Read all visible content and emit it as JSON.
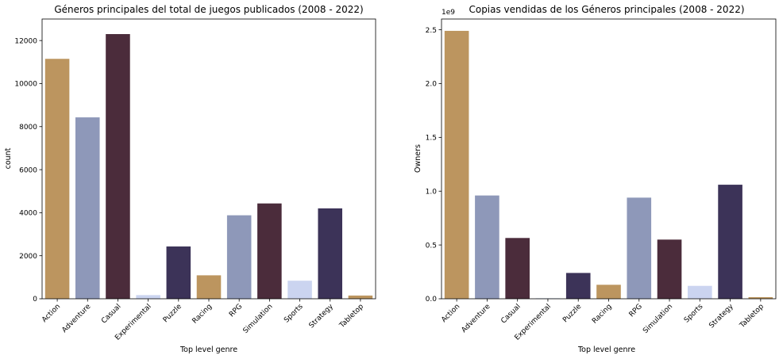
{
  "chart_data": [
    {
      "type": "bar",
      "title": "Géneros principales del total de juegos publicados (2008 - 2022)",
      "xlabel": "Top level genre",
      "ylabel": "count",
      "categories": [
        "Action",
        "Adventure",
        "Casual",
        "Experimental",
        "Puzzle",
        "Racing",
        "RPG",
        "Simulation",
        "Sports",
        "Strategy",
        "Tabletop"
      ],
      "values": [
        11150,
        8430,
        12300,
        170,
        2430,
        1090,
        3880,
        4430,
        840,
        4200,
        150
      ],
      "ylim": [
        0,
        13000
      ],
      "yticks": [
        0,
        2000,
        4000,
        6000,
        8000,
        10000,
        12000
      ],
      "ytick_labels": [
        "0",
        "2000",
        "4000",
        "6000",
        "8000",
        "10000",
        "12000"
      ],
      "colors": [
        "#bc955f",
        "#8e98b9",
        "#4b2c3b",
        "#cbd4f0",
        "#3c3358",
        "#bc955f",
        "#8e98b9",
        "#4b2c3b",
        "#cbd4f0",
        "#3c3358",
        "#bc955f"
      ],
      "grid": false
    },
    {
      "type": "bar",
      "title": "Copias vendidas de los Géneros principales (2008 - 2022)",
      "xlabel": "Top level genre",
      "ylabel": "Owners",
      "y_offset_label": "1e9",
      "categories": [
        "Action",
        "Adventure",
        "Casual",
        "Experimental",
        "Puzzle",
        "Racing",
        "RPG",
        "Simulation",
        "Sports",
        "Strategy",
        "Tabletop"
      ],
      "values": [
        2.49,
        0.96,
        0.565,
        0.005,
        0.24,
        0.13,
        0.94,
        0.55,
        0.12,
        1.06,
        0.015
      ],
      "ylim": [
        0,
        2.6
      ],
      "yticks": [
        0.0,
        0.5,
        1.0,
        1.5,
        2.0,
        2.5
      ],
      "ytick_labels": [
        "0.0",
        "0.5",
        "1.0",
        "1.5",
        "2.0",
        "2.5"
      ],
      "colors": [
        "#bc955f",
        "#8e98b9",
        "#4b2c3b",
        "#cbd4f0",
        "#3c3358",
        "#bc955f",
        "#8e98b9",
        "#4b2c3b",
        "#cbd4f0",
        "#3c3358",
        "#bc955f"
      ],
      "grid": false
    }
  ]
}
